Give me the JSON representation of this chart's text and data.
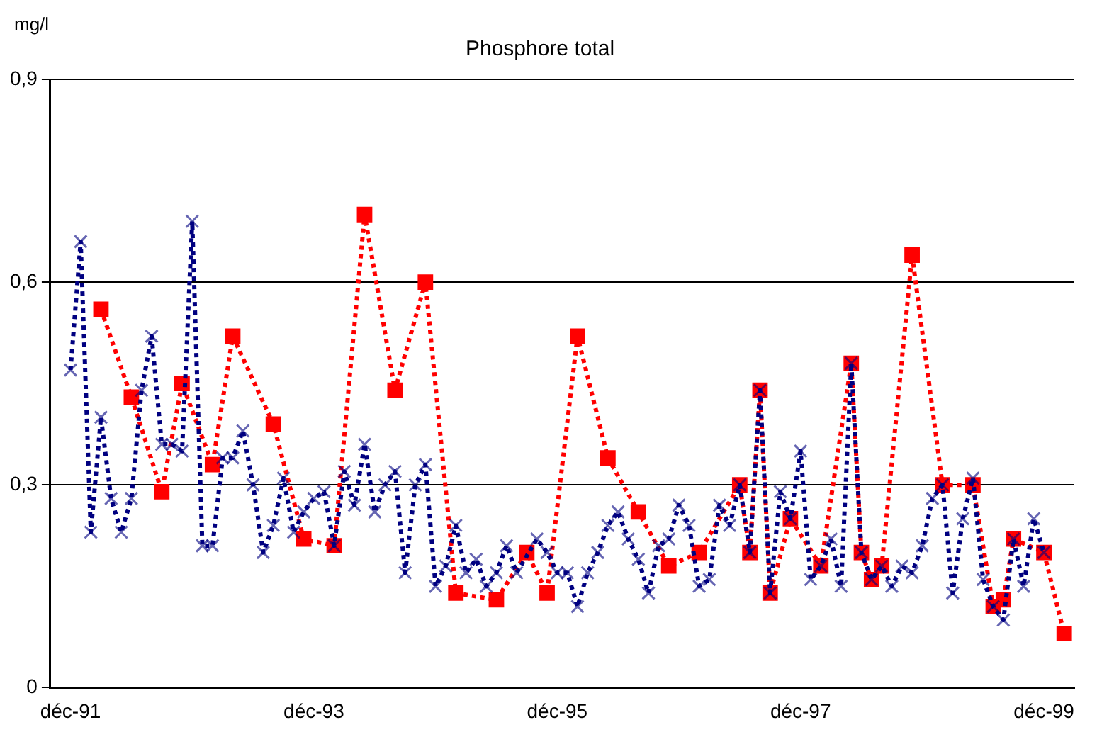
{
  "chart_data": {
    "type": "line",
    "title": "Phosphore total",
    "ylabel": "mg/l",
    "xlim": [
      "1991-10",
      "2000-03"
    ],
    "xticks": [
      {
        "value": "1991-12",
        "label": "déc-91"
      },
      {
        "value": "1993-12",
        "label": "déc-93"
      },
      {
        "value": "1995-12",
        "label": "déc-95"
      },
      {
        "value": "1997-12",
        "label": "déc-97"
      },
      {
        "value": "1999-12",
        "label": "déc-99"
      }
    ],
    "ylim": [
      0,
      0.9
    ],
    "yticks": [
      {
        "value": 0,
        "label": "0"
      },
      {
        "value": 0.3,
        "label": "0,3"
      },
      {
        "value": 0.6,
        "label": "0,6"
      },
      {
        "value": 0.9,
        "label": "0,9"
      }
    ],
    "grid": "y",
    "legend": false,
    "line_style": "dotted",
    "series": [
      {
        "color": "#000080",
        "marker": "cross",
        "x": [
          "1991-12",
          "1992-01",
          "1992-02",
          "1992-03",
          "1992-04",
          "1992-05",
          "1992-06",
          "1992-07",
          "1992-08",
          "1992-09",
          "1992-10",
          "1992-11",
          "1992-12",
          "1993-01",
          "1993-02",
          "1993-03",
          "1993-04",
          "1993-05",
          "1993-06",
          "1993-07",
          "1993-08",
          "1993-09",
          "1993-10",
          "1993-11",
          "1993-12",
          "1994-01",
          "1994-02",
          "1994-03",
          "1994-04",
          "1994-05",
          "1994-06",
          "1994-07",
          "1994-08",
          "1994-09",
          "1994-10",
          "1994-11",
          "1994-12",
          "1995-01",
          "1995-02",
          "1995-03",
          "1995-04",
          "1995-05",
          "1995-06",
          "1995-07",
          "1995-08",
          "1995-10",
          "1995-11",
          "1995-12",
          "1996-01",
          "1996-02",
          "1996-03",
          "1996-04",
          "1996-05",
          "1996-06",
          "1996-07",
          "1996-08",
          "1996-09",
          "1996-10",
          "1996-11",
          "1996-12",
          "1997-01",
          "1997-02",
          "1997-03",
          "1997-04",
          "1997-05",
          "1997-06",
          "1997-07",
          "1997-08",
          "1997-09",
          "1997-10",
          "1997-11",
          "1997-12",
          "1998-01",
          "1998-02",
          "1998-03",
          "1998-04",
          "1998-05",
          "1998-06",
          "1998-07",
          "1998-08",
          "1998-09",
          "1998-10",
          "1998-11",
          "1998-12",
          "1999-01",
          "1999-02",
          "1999-03",
          "1999-04",
          "1999-05",
          "1999-06",
          "1999-07",
          "1999-08",
          "1999-09",
          "1999-10",
          "1999-11",
          "1999-12"
        ],
        "values": [
          0.47,
          0.66,
          0.23,
          0.4,
          0.28,
          0.23,
          0.28,
          0.44,
          0.52,
          0.36,
          0.36,
          0.35,
          0.69,
          0.21,
          0.21,
          0.34,
          0.34,
          0.38,
          0.3,
          0.2,
          0.24,
          0.31,
          0.23,
          0.26,
          0.28,
          0.29,
          0.21,
          0.32,
          0.27,
          0.36,
          0.26,
          0.3,
          0.32,
          0.17,
          0.3,
          0.33,
          0.15,
          0.18,
          0.24,
          0.17,
          0.19,
          0.15,
          0.17,
          0.21,
          0.17,
          0.22,
          0.2,
          0.17,
          0.17,
          0.12,
          0.17,
          0.2,
          0.24,
          0.26,
          0.22,
          0.19,
          0.14,
          0.21,
          0.22,
          0.27,
          0.24,
          0.15,
          0.16,
          0.27,
          0.24,
          0.3,
          0.2,
          0.44,
          0.14,
          0.29,
          0.25,
          0.35,
          0.16,
          0.18,
          0.22,
          0.15,
          0.48,
          0.2,
          0.16,
          0.18,
          0.15,
          0.18,
          0.17,
          0.21,
          0.28,
          0.3,
          0.14,
          0.25,
          0.31,
          0.16,
          0.12,
          0.1,
          0.22,
          0.15,
          0.25,
          0.2
        ]
      },
      {
        "color": "#ff0000",
        "marker": "square",
        "x": [
          "1992-03",
          "1992-06",
          "1992-09",
          "1992-11",
          "1993-02",
          "1993-04",
          "1993-08",
          "1993-11",
          "1994-02",
          "1994-05",
          "1994-08",
          "1994-11",
          "1995-02",
          "1995-06",
          "1995-09",
          "1995-11",
          "1996-02",
          "1996-05",
          "1996-08",
          "1996-11",
          "1997-02",
          "1997-06",
          "1997-07",
          "1997-08",
          "1997-09",
          "1997-11",
          "1998-02",
          "1998-05",
          "1998-06",
          "1998-07",
          "1998-08",
          "1998-11",
          "1999-02",
          "1999-05",
          "1999-07",
          "1999-08",
          "1999-09",
          "1999-12",
          "2000-02"
        ],
        "values": [
          0.56,
          0.43,
          0.29,
          0.45,
          0.33,
          0.52,
          0.39,
          0.22,
          0.21,
          0.7,
          0.44,
          0.6,
          0.14,
          0.13,
          0.2,
          0.14,
          0.52,
          0.34,
          0.26,
          0.18,
          0.2,
          0.3,
          0.2,
          0.44,
          0.14,
          0.25,
          0.18,
          0.48,
          0.2,
          0.16,
          0.18,
          0.64,
          0.3,
          0.3,
          0.12,
          0.13,
          0.22,
          0.2,
          0.08
        ]
      }
    ]
  }
}
